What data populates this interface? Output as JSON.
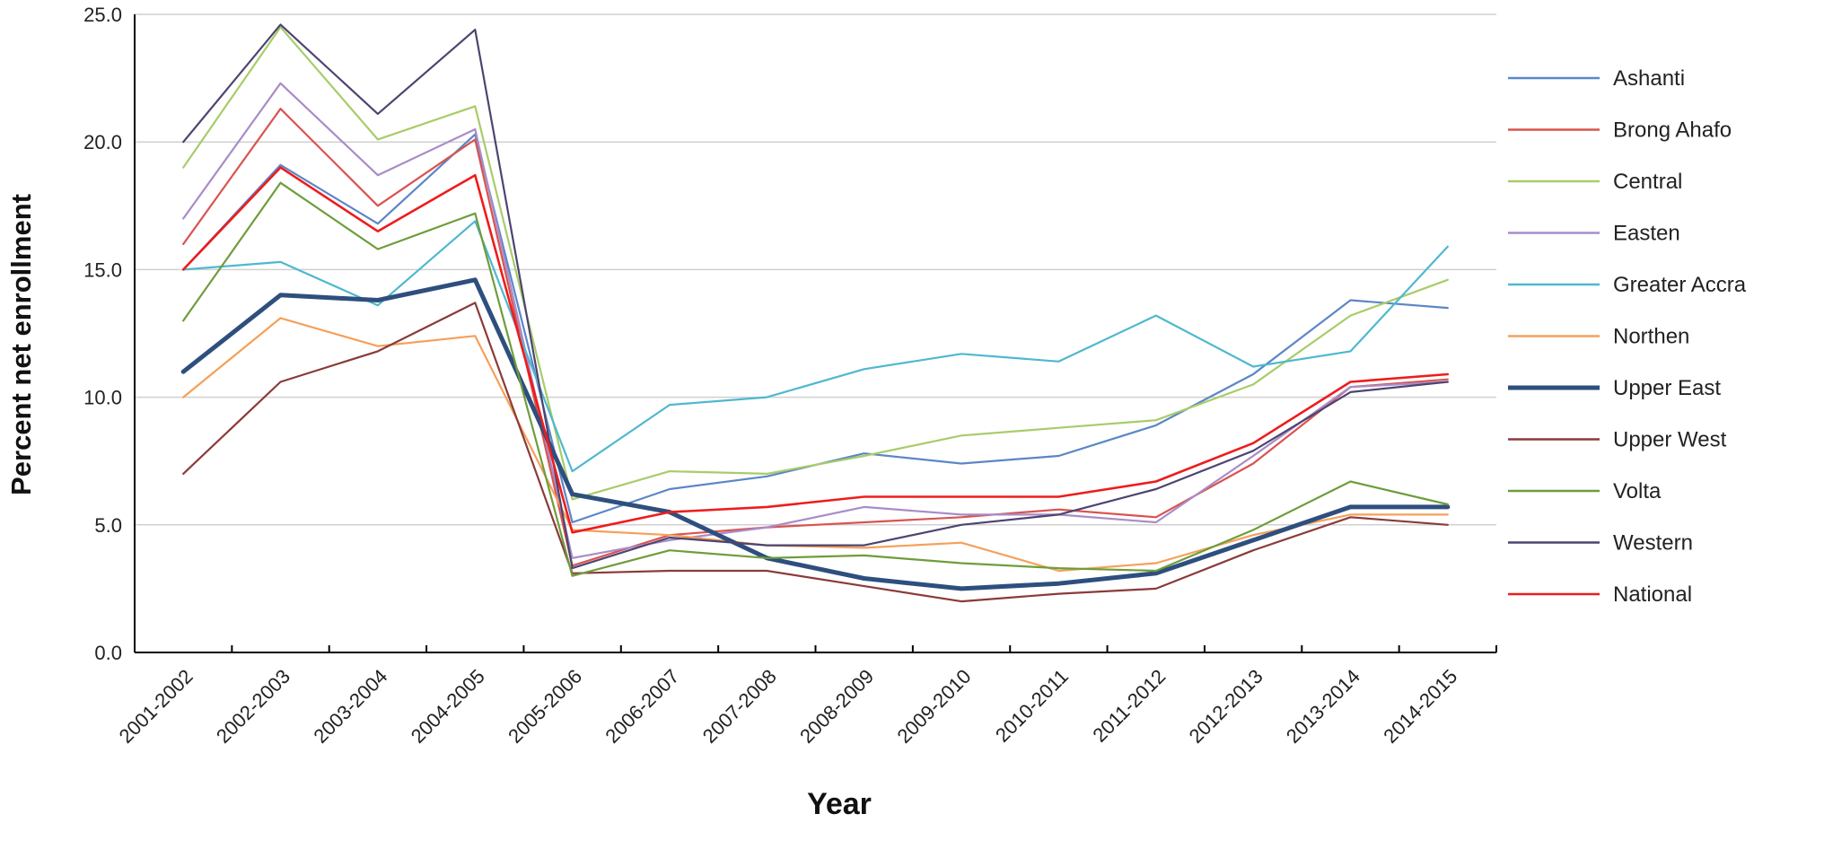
{
  "chart_data": {
    "type": "line",
    "title": "",
    "xlabel": "Year",
    "ylabel": "Percent net enrollment",
    "ylim": [
      0,
      25
    ],
    "yticks": [
      "0.0",
      "5.0",
      "10.0",
      "15.0",
      "20.0",
      "25.0"
    ],
    "grid": "horizontal",
    "legend_position": "right",
    "categories": [
      "2001-2002",
      "2002-2003",
      "2003-2004",
      "2004-2005",
      "2005-2006",
      "2006-2007",
      "2007-2008",
      "2008-2009",
      "2009-2010",
      "2010-2011",
      "2011-2012",
      "2012-2013",
      "2013-2014",
      "2014-2015"
    ],
    "series": [
      {
        "name": "Ashanti",
        "color": "#5b86c8",
        "values": [
          15.0,
          19.1,
          16.8,
          20.3,
          5.1,
          6.4,
          6.9,
          7.8,
          7.4,
          7.7,
          8.9,
          10.9,
          13.8,
          13.5
        ]
      },
      {
        "name": "Brong Ahafo",
        "color": "#d9534f",
        "values": [
          16.0,
          21.3,
          17.5,
          20.1,
          3.4,
          4.6,
          4.9,
          5.1,
          5.3,
          5.6,
          5.3,
          7.4,
          10.4,
          10.7
        ]
      },
      {
        "name": "Central",
        "color": "#a8cc6a",
        "values": [
          19.0,
          24.5,
          20.1,
          21.4,
          6.0,
          7.1,
          7.0,
          7.7,
          8.5,
          8.8,
          9.1,
          10.5,
          13.2,
          14.6
        ]
      },
      {
        "name": "Easten",
        "color": "#a88cc8",
        "values": [
          17.0,
          22.3,
          18.7,
          20.5,
          3.7,
          4.4,
          4.9,
          5.7,
          5.4,
          5.4,
          5.1,
          7.7,
          10.4,
          10.6
        ]
      },
      {
        "name": "Greater Accra",
        "color": "#4fb8cf",
        "values": [
          15.0,
          15.3,
          13.6,
          16.9,
          7.1,
          9.7,
          10.0,
          11.1,
          11.7,
          11.4,
          13.2,
          11.2,
          11.8,
          15.9
        ]
      },
      {
        "name": "Northen",
        "color": "#f5a05a",
        "values": [
          10.0,
          13.1,
          12.0,
          12.4,
          4.8,
          4.6,
          4.2,
          4.1,
          4.3,
          3.2,
          3.5,
          4.6,
          5.4,
          5.4
        ]
      },
      {
        "name": "Upper East",
        "color": "#2e4f7e",
        "values": [
          11.0,
          14.0,
          13.8,
          14.6,
          6.2,
          5.5,
          3.7,
          2.9,
          2.5,
          2.7,
          3.1,
          4.4,
          5.7,
          5.7
        ]
      },
      {
        "name": "Upper West",
        "color": "#8b3a3a",
        "values": [
          7.0,
          10.6,
          11.8,
          13.7,
          3.1,
          3.2,
          3.2,
          2.6,
          2.0,
          2.3,
          2.5,
          4.0,
          5.3,
          5.0
        ]
      },
      {
        "name": "Volta",
        "color": "#6e9d3a",
        "values": [
          13.0,
          18.4,
          15.8,
          17.2,
          3.0,
          4.0,
          3.7,
          3.8,
          3.5,
          3.3,
          3.2,
          4.8,
          6.7,
          5.8
        ]
      },
      {
        "name": "Western",
        "color": "#4d4470",
        "values": [
          20.0,
          24.6,
          21.1,
          24.4,
          3.3,
          4.5,
          4.2,
          4.2,
          5.0,
          5.4,
          6.4,
          7.9,
          10.2,
          10.6
        ]
      },
      {
        "name": "National",
        "color": "#ee1c1c",
        "values": [
          15.0,
          19.0,
          16.5,
          18.7,
          4.7,
          5.5,
          5.7,
          6.1,
          6.1,
          6.1,
          6.7,
          8.2,
          10.6,
          10.9
        ]
      }
    ]
  }
}
